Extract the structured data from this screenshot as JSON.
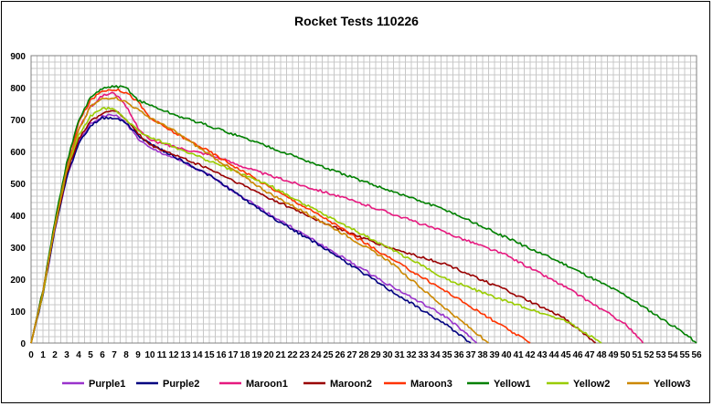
{
  "chart_data": {
    "type": "line",
    "title": "Rocket Tests 110226",
    "xlabel": "",
    "ylabel": "",
    "xlim": [
      0,
      56
    ],
    "ylim": [
      0,
      900
    ],
    "x_ticks": [
      "0",
      "1",
      "2",
      "3",
      "4",
      "5",
      "6",
      "7",
      "8",
      "9",
      "10",
      "11",
      "12",
      "13",
      "14",
      "15",
      "16",
      "17",
      "18",
      "19",
      "20",
      "21",
      "22",
      "23",
      "24",
      "25",
      "26",
      "27",
      "28",
      "29",
      "30",
      "31",
      "32",
      "33",
      "34",
      "35",
      "36",
      "37",
      "38",
      "39",
      "40",
      "41",
      "42",
      "43",
      "44",
      "45",
      "46",
      "47",
      "48",
      "49",
      "50",
      "51",
      "52",
      "53",
      "54",
      "55",
      "56"
    ],
    "y_ticks": [
      "0",
      "100",
      "200",
      "300",
      "400",
      "500",
      "600",
      "700",
      "800",
      "900"
    ],
    "grid": true,
    "legend_position": "bottom",
    "series": [
      {
        "name": "Purple1",
        "color": "#9933cc",
        "points": [
          [
            0,
            0
          ],
          [
            1,
            150
          ],
          [
            2,
            350
          ],
          [
            3,
            520
          ],
          [
            4,
            630
          ],
          [
            5,
            685
          ],
          [
            6,
            710
          ],
          [
            7,
            715
          ],
          [
            8,
            690
          ],
          [
            9,
            640
          ],
          [
            10,
            610
          ],
          [
            12,
            580
          ],
          [
            15,
            525
          ],
          [
            20,
            405
          ],
          [
            25,
            295
          ],
          [
            30,
            185
          ],
          [
            35,
            80
          ],
          [
            37.5,
            0
          ]
        ]
      },
      {
        "name": "Purple2",
        "color": "#000080",
        "points": [
          [
            0,
            0
          ],
          [
            1,
            150
          ],
          [
            2,
            355
          ],
          [
            3,
            520
          ],
          [
            4,
            625
          ],
          [
            5,
            680
          ],
          [
            6,
            705
          ],
          [
            7,
            706
          ],
          [
            8,
            690
          ],
          [
            9,
            650
          ],
          [
            10,
            625
          ],
          [
            12,
            585
          ],
          [
            15,
            525
          ],
          [
            20,
            400
          ],
          [
            25,
            290
          ],
          [
            30,
            170
          ],
          [
            35,
            55
          ],
          [
            37,
            0
          ]
        ]
      },
      {
        "name": "Maroon1",
        "color": "#e6197f",
        "points": [
          [
            0,
            0
          ],
          [
            1,
            160
          ],
          [
            2,
            370
          ],
          [
            3,
            550
          ],
          [
            4,
            670
          ],
          [
            5,
            740
          ],
          [
            6,
            775
          ],
          [
            7,
            785
          ],
          [
            8,
            740
          ],
          [
            9,
            675
          ],
          [
            10,
            635
          ],
          [
            12,
            615
          ],
          [
            15,
            590
          ],
          [
            20,
            525
          ],
          [
            25,
            470
          ],
          [
            30,
            410
          ],
          [
            35,
            345
          ],
          [
            40,
            275
          ],
          [
            45,
            175
          ],
          [
            50,
            60
          ],
          [
            51.5,
            0
          ]
        ]
      },
      {
        "name": "Maroon2",
        "color": "#990000",
        "points": [
          [
            0,
            0
          ],
          [
            1,
            155
          ],
          [
            2,
            360
          ],
          [
            3,
            530
          ],
          [
            4,
            640
          ],
          [
            5,
            695
          ],
          [
            6,
            720
          ],
          [
            7,
            730
          ],
          [
            8,
            700
          ],
          [
            9,
            655
          ],
          [
            10,
            620
          ],
          [
            12,
            590
          ],
          [
            15,
            545
          ],
          [
            20,
            455
          ],
          [
            25,
            370
          ],
          [
            30,
            300
          ],
          [
            35,
            245
          ],
          [
            40,
            165
          ],
          [
            45,
            75
          ],
          [
            47.5,
            0
          ]
        ]
      },
      {
        "name": "Maroon3",
        "color": "#ff3300",
        "points": [
          [
            0,
            0
          ],
          [
            1,
            165
          ],
          [
            2,
            375
          ],
          [
            3,
            560
          ],
          [
            4,
            690
          ],
          [
            5,
            760
          ],
          [
            6,
            790
          ],
          [
            7,
            795
          ],
          [
            8,
            785
          ],
          [
            9,
            755
          ],
          [
            10,
            705
          ],
          [
            12,
            660
          ],
          [
            15,
            600
          ],
          [
            20,
            490
          ],
          [
            25,
            385
          ],
          [
            30,
            270
          ],
          [
            35,
            160
          ],
          [
            40,
            45
          ],
          [
            42,
            0
          ]
        ]
      },
      {
        "name": "Yellow1",
        "color": "#008000",
        "points": [
          [
            0,
            0
          ],
          [
            1,
            165
          ],
          [
            2,
            380
          ],
          [
            3,
            565
          ],
          [
            4,
            695
          ],
          [
            5,
            770
          ],
          [
            6,
            795
          ],
          [
            7,
            805
          ],
          [
            8,
            800
          ],
          [
            9,
            760
          ],
          [
            10,
            745
          ],
          [
            12,
            715
          ],
          [
            15,
            680
          ],
          [
            20,
            615
          ],
          [
            25,
            545
          ],
          [
            30,
            480
          ],
          [
            35,
            415
          ],
          [
            40,
            330
          ],
          [
            45,
            245
          ],
          [
            50,
            150
          ],
          [
            55,
            30
          ],
          [
            56,
            0
          ]
        ]
      },
      {
        "name": "Yellow2",
        "color": "#99cc00",
        "points": [
          [
            0,
            0
          ],
          [
            1,
            155
          ],
          [
            2,
            365
          ],
          [
            3,
            540
          ],
          [
            4,
            650
          ],
          [
            5,
            710
          ],
          [
            6,
            735
          ],
          [
            7,
            735
          ],
          [
            8,
            700
          ],
          [
            9,
            665
          ],
          [
            10,
            645
          ],
          [
            12,
            615
          ],
          [
            15,
            570
          ],
          [
            20,
            495
          ],
          [
            25,
            395
          ],
          [
            30,
            300
          ],
          [
            35,
            200
          ],
          [
            40,
            130
          ],
          [
            45,
            70
          ],
          [
            48,
            0
          ]
        ]
      },
      {
        "name": "Yellow3",
        "color": "#cc8800",
        "points": [
          [
            0,
            0
          ],
          [
            1,
            160
          ],
          [
            2,
            370
          ],
          [
            3,
            545
          ],
          [
            4,
            665
          ],
          [
            5,
            740
          ],
          [
            6,
            765
          ],
          [
            7,
            770
          ],
          [
            8,
            755
          ],
          [
            9,
            730
          ],
          [
            10,
            705
          ],
          [
            12,
            665
          ],
          [
            15,
            590
          ],
          [
            20,
            470
          ],
          [
            25,
            370
          ],
          [
            30,
            260
          ],
          [
            35,
            105
          ],
          [
            37,
            45
          ],
          [
            38.5,
            0
          ]
        ]
      }
    ]
  }
}
